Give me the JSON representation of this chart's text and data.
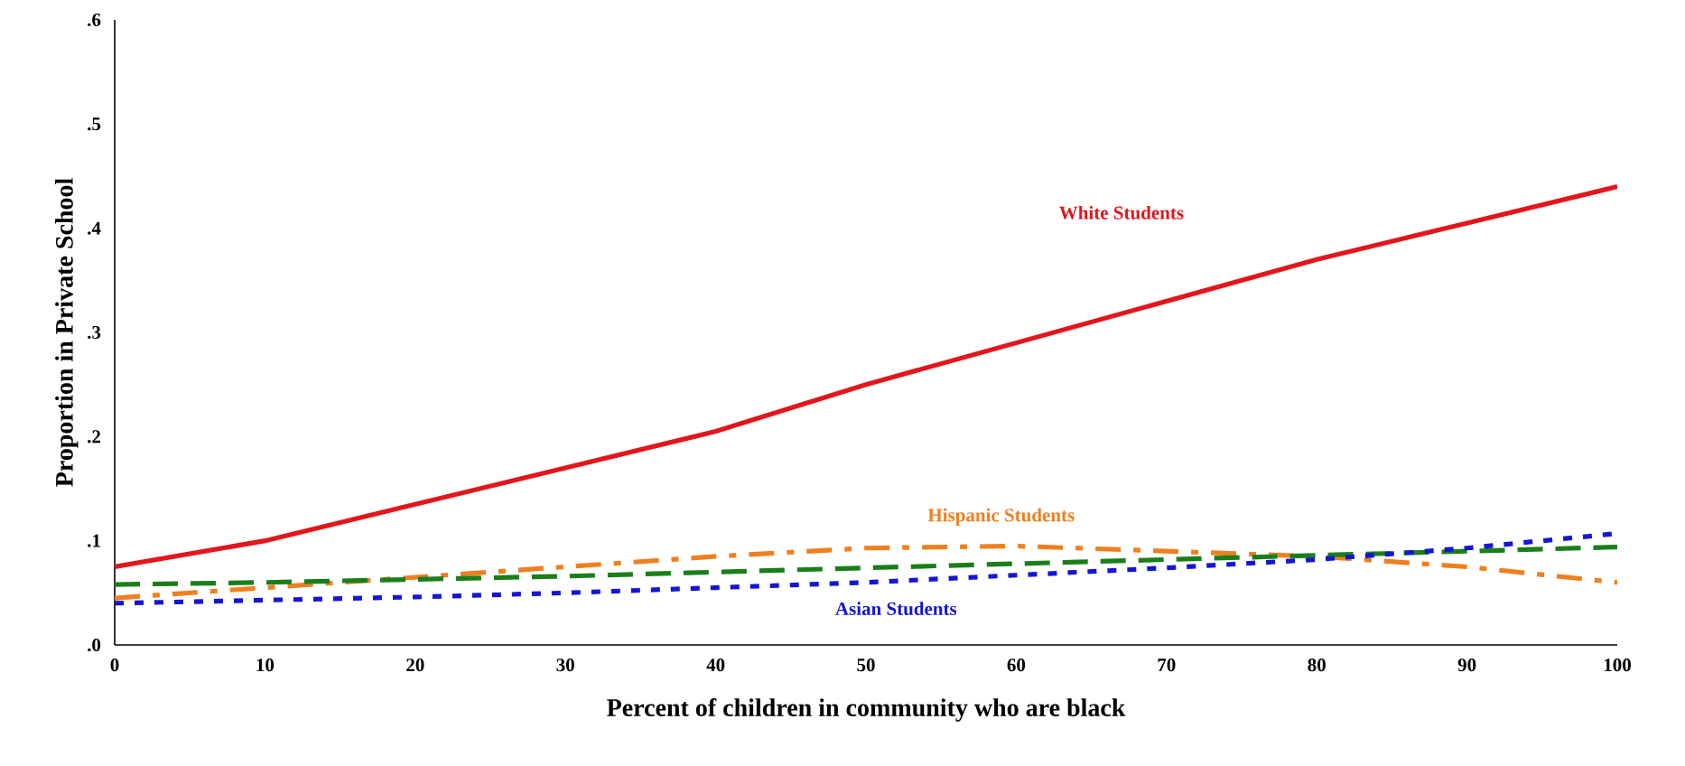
{
  "chart_data": {
    "type": "line",
    "xlabel": "Percent of children in community who are black",
    "ylabel": "Proportion in Private School",
    "x": [
      0,
      10,
      20,
      30,
      40,
      50,
      60,
      70,
      80,
      90,
      100
    ],
    "series": [
      {
        "name": "White Students",
        "color": "#e3161c",
        "line_style": "solid",
        "values": [
          0.075,
          0.1,
          0.135,
          0.17,
          0.205,
          0.25,
          0.29,
          0.33,
          0.37,
          0.405,
          0.44
        ]
      },
      {
        "name": "Hispanic Students",
        "color": "#f07f1e",
        "line_style": "dashdot",
        "values": [
          0.045,
          0.055,
          0.065,
          0.075,
          0.085,
          0.093,
          0.095,
          0.09,
          0.085,
          0.075,
          0.06
        ]
      },
      {
        "color": "#1a7f1a",
        "line_style": "dashed",
        "values": [
          0.058,
          0.06,
          0.063,
          0.066,
          0.07,
          0.074,
          0.078,
          0.082,
          0.086,
          0.09,
          0.094
        ]
      },
      {
        "name": "Asian Students",
        "color": "#1515d6",
        "line_style": "dotted",
        "values": [
          0.04,
          0.043,
          0.046,
          0.05,
          0.055,
          0.06,
          0.067,
          0.074,
          0.082,
          0.093,
          0.107
        ]
      }
    ],
    "xlim": [
      0,
      100
    ],
    "ylim": [
      0,
      0.6
    ],
    "xticks": [
      0,
      10,
      20,
      30,
      40,
      50,
      60,
      70,
      80,
      90,
      100
    ],
    "yticks": [
      {
        "value": 0,
        "label": ".0"
      },
      {
        "value": 0.1,
        "label": ".1"
      },
      {
        "value": 0.2,
        "label": ".2"
      },
      {
        "value": 0.3,
        "label": ".3"
      },
      {
        "value": 0.4,
        "label": ".4"
      },
      {
        "value": 0.5,
        "label": ".5"
      },
      {
        "value": 0.6,
        "label": ".6"
      }
    ],
    "grid": false,
    "legend": false,
    "marker": "none"
  }
}
